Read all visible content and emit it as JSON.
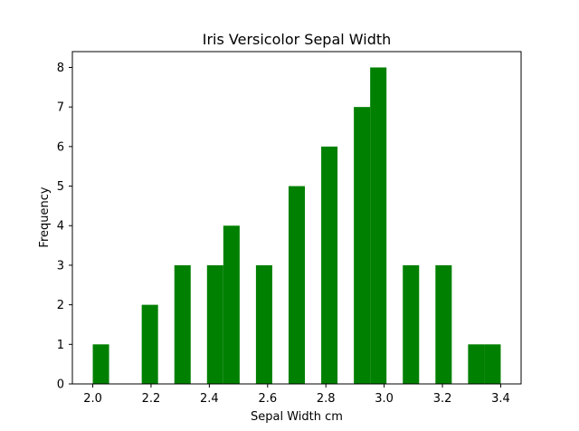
{
  "chart_data": {
    "type": "bar",
    "title": "Iris Versicolor Sepal Width",
    "xlabel": "Sepal Width cm",
    "ylabel": "Frequency",
    "xlim": [
      1.93,
      3.47
    ],
    "ylim": [
      0,
      8.4
    ],
    "xticks": [
      2.0,
      2.2,
      2.4,
      2.6,
      2.8,
      3.0,
      3.2,
      3.4
    ],
    "xtick_labels": [
      "2.0",
      "2.2",
      "2.4",
      "2.6",
      "2.8",
      "3.0",
      "3.2",
      "3.4"
    ],
    "yticks": [
      0,
      1,
      2,
      3,
      4,
      5,
      6,
      7,
      8
    ],
    "ytick_labels": [
      "0",
      "1",
      "2",
      "3",
      "4",
      "5",
      "6",
      "7",
      "8"
    ],
    "bin_width": 0.056,
    "bin_left_edges": [
      2.0,
      2.056,
      2.112,
      2.168,
      2.224,
      2.28,
      2.336,
      2.392,
      2.448,
      2.504,
      2.56,
      2.616,
      2.672,
      2.728,
      2.784,
      2.84,
      2.896,
      2.952,
      3.008,
      3.064,
      3.12,
      3.176,
      3.232,
      3.288,
      3.344
    ],
    "values": [
      1,
      0,
      0,
      2,
      0,
      3,
      0,
      3,
      4,
      0,
      3,
      0,
      5,
      0,
      6,
      0,
      7,
      8,
      0,
      3,
      0,
      3,
      0,
      1,
      1
    ],
    "bar_color": "#008000",
    "grid": false,
    "legend": "none"
  }
}
